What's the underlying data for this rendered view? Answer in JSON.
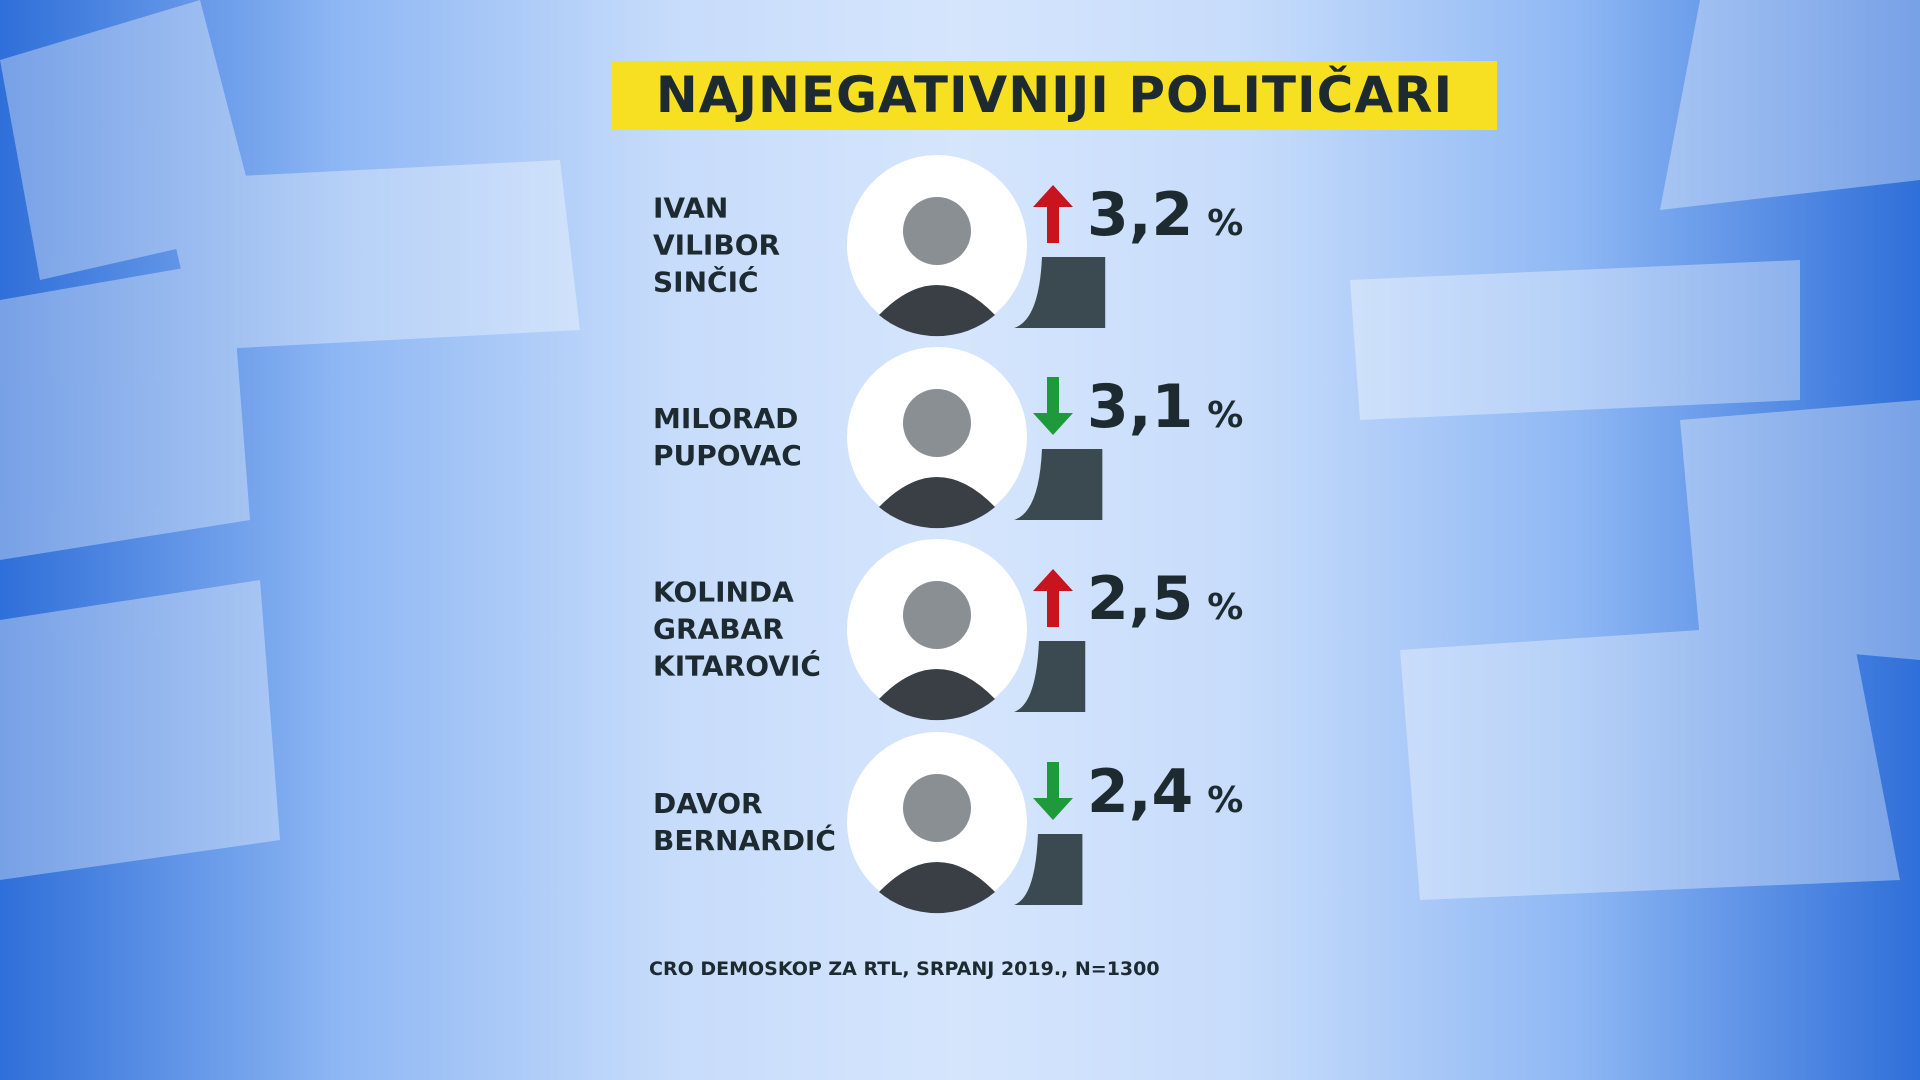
{
  "chart_data": {
    "type": "bar",
    "title": "NAJNEGATIVNIJI POLITIČARI",
    "categories": [
      "IVAN VILIBOR SINČIĆ",
      "MILORAD PUPOVAC",
      "KOLINDA GRABAR KITAROVIĆ",
      "DAVOR BERNARDIĆ"
    ],
    "values": [
      3.2,
      3.1,
      2.5,
      2.4
    ],
    "value_labels": [
      "3,2 %",
      "3,1 %",
      "2,5 %",
      "2,4 %"
    ],
    "trend": [
      "up",
      "down",
      "up",
      "down"
    ],
    "trend_colors": {
      "up": "#c8141e",
      "down": "#1e9a3c"
    },
    "color": "#3b4a50",
    "source": "CRO DEMOSKOP ZA RTL, SRPANJ 2019., N=1300"
  }
}
